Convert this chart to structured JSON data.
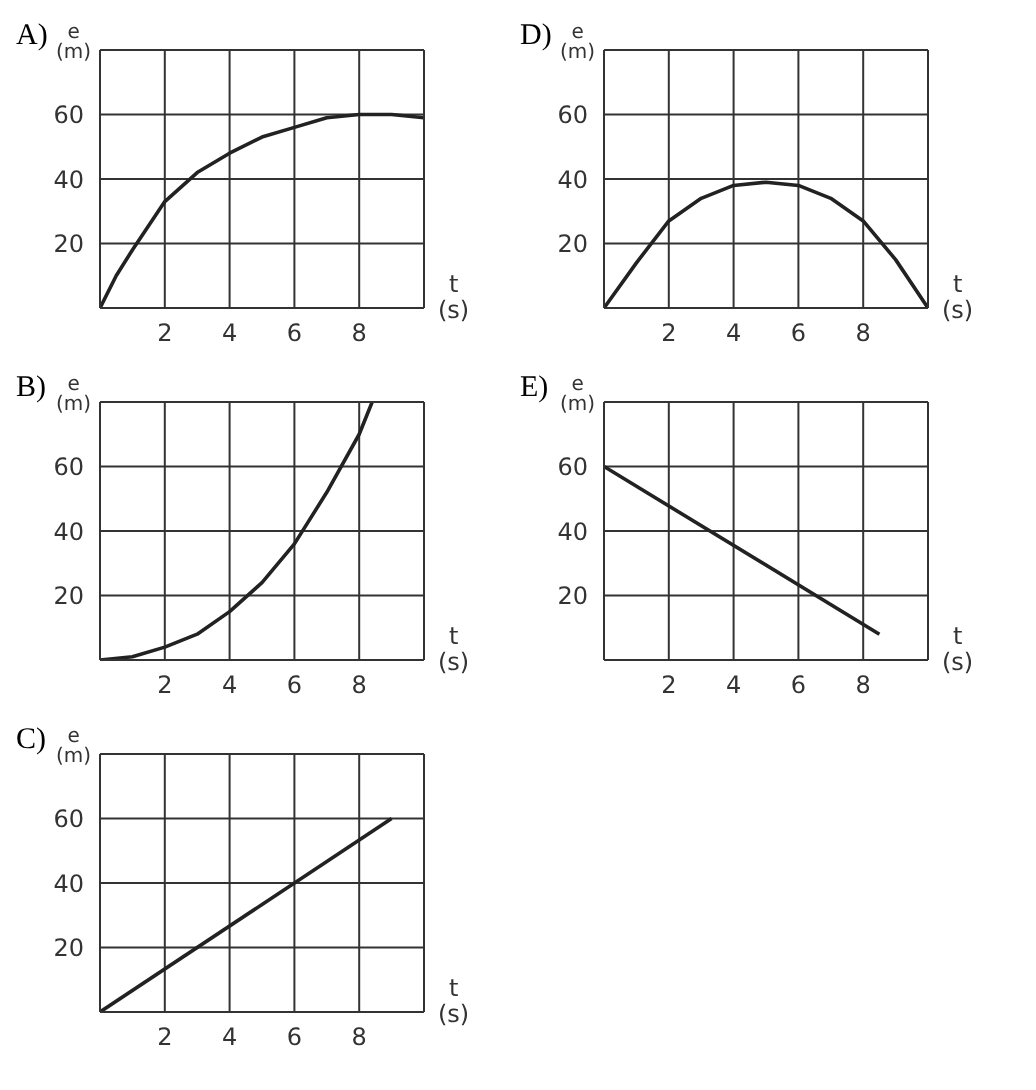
{
  "chart_data": [
    {
      "type": "line",
      "title": "A)",
      "xlabel": "t\n(s)",
      "ylabel": "e\n(m)",
      "xlim": [
        0,
        10
      ],
      "ylim": [
        0,
        80
      ],
      "xticks": [
        2,
        4,
        6,
        8
      ],
      "yticks": [
        20,
        40,
        60
      ],
      "grid": true,
      "marker": "none",
      "line_style": "solid",
      "series": [
        {
          "color": "#222222",
          "x": [
            0,
            0.5,
            1,
            2,
            3,
            4,
            5,
            6,
            7,
            8,
            9,
            10
          ],
          "values": [
            0,
            10,
            18,
            33,
            42,
            48,
            53,
            56,
            59,
            60,
            60,
            59
          ]
        }
      ]
    },
    {
      "type": "line",
      "title": "B)",
      "xlabel": "t\n(s)",
      "ylabel": "e\n(m)",
      "xlim": [
        0,
        10
      ],
      "ylim": [
        0,
        80
      ],
      "xticks": [
        2,
        4,
        6,
        8
      ],
      "yticks": [
        20,
        40,
        60
      ],
      "grid": true,
      "marker": "none",
      "line_style": "solid",
      "series": [
        {
          "color": "#222222",
          "x": [
            0,
            1,
            2,
            3,
            4,
            5,
            6,
            7,
            8,
            8.4
          ],
          "values": [
            0,
            1,
            4,
            8,
            15,
            24,
            36,
            52,
            70,
            80
          ]
        }
      ]
    },
    {
      "type": "line",
      "title": "C)",
      "xlabel": "t\n(s)",
      "ylabel": "e\n(m)",
      "xlim": [
        0,
        10
      ],
      "ylim": [
        0,
        80
      ],
      "xticks": [
        2,
        4,
        6,
        8
      ],
      "yticks": [
        20,
        40,
        60
      ],
      "grid": true,
      "marker": "none",
      "line_style": "solid",
      "series": [
        {
          "color": "#222222",
          "x": [
            0,
            9
          ],
          "values": [
            0,
            60
          ]
        }
      ]
    },
    {
      "type": "line",
      "title": "D)",
      "xlabel": "t\n(s)",
      "ylabel": "e\n(m)",
      "xlim": [
        0,
        10
      ],
      "ylim": [
        0,
        80
      ],
      "xticks": [
        2,
        4,
        6,
        8
      ],
      "yticks": [
        20,
        40,
        60
      ],
      "grid": true,
      "marker": "none",
      "line_style": "solid",
      "series": [
        {
          "color": "#222222",
          "x": [
            0,
            1,
            2,
            3,
            4,
            5,
            6,
            7,
            8,
            9,
            10
          ],
          "values": [
            0,
            14,
            27,
            34,
            38,
            39,
            38,
            34,
            27,
            15,
            0
          ]
        }
      ]
    },
    {
      "type": "line",
      "title": "E)",
      "xlabel": "t\n(s)",
      "ylabel": "e\n(m)",
      "xlim": [
        0,
        10
      ],
      "ylim": [
        0,
        80
      ],
      "xticks": [
        2,
        4,
        6,
        8
      ],
      "yticks": [
        20,
        40,
        60
      ],
      "grid": true,
      "marker": "none",
      "line_style": "solid",
      "series": [
        {
          "color": "#222222",
          "x": [
            0,
            8.5
          ],
          "values": [
            60,
            8
          ]
        }
      ]
    }
  ]
}
